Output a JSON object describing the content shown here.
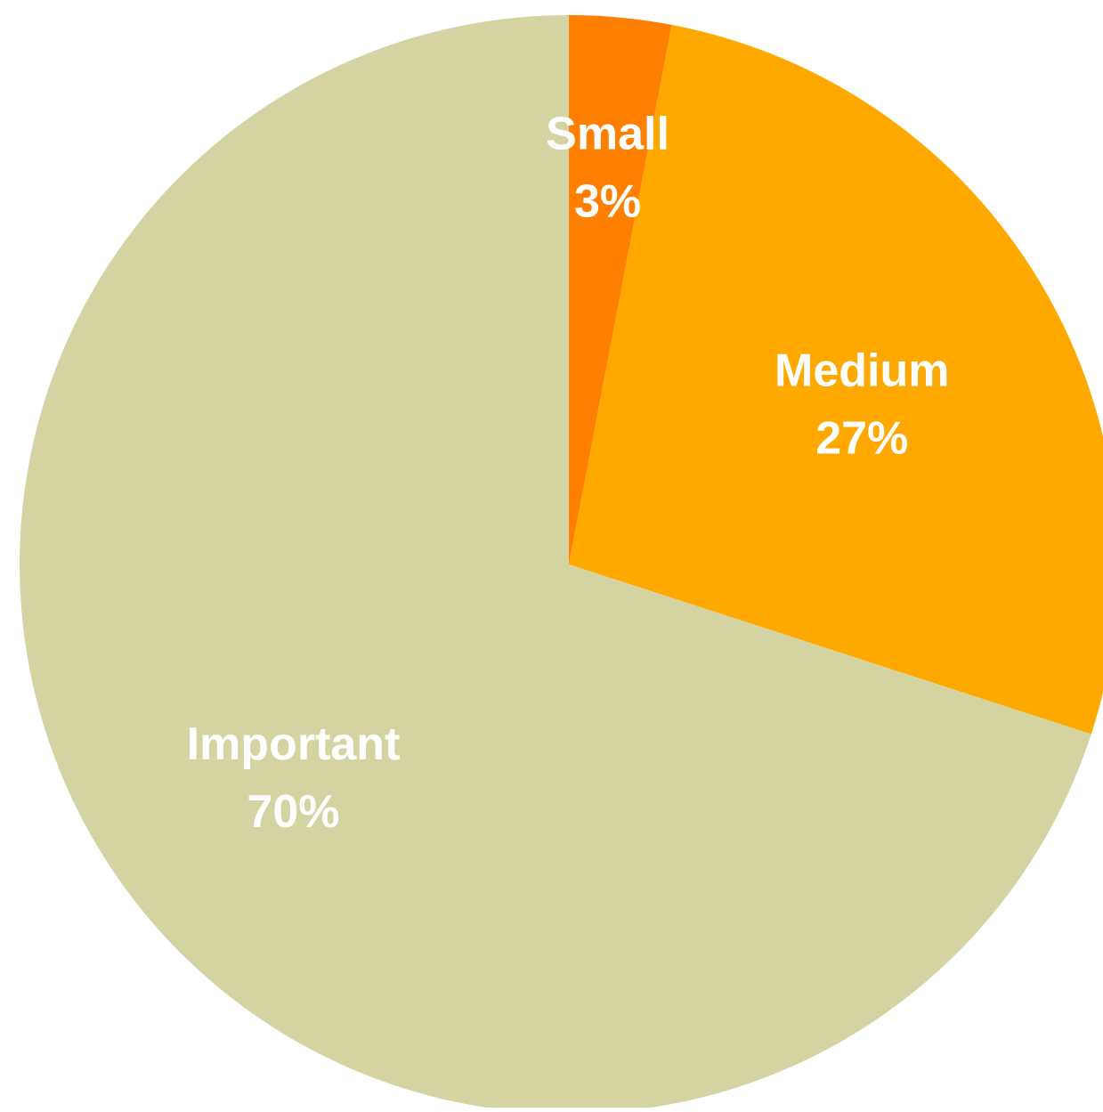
{
  "chart_data": {
    "type": "pie",
    "slices": [
      {
        "label": "Small",
        "value": 3,
        "value_label": "3%",
        "color": "#FF7F00"
      },
      {
        "label": "Medium",
        "value": 27,
        "value_label": "27%",
        "color": "#FFA900"
      },
      {
        "label": "Important",
        "value": 70,
        "value_label": "70%",
        "color": "#D4D4A3"
      }
    ],
    "start_angle": "12 o'clock",
    "direction": "clockwise",
    "legend": "none",
    "label_color": "#FFFFFF"
  }
}
